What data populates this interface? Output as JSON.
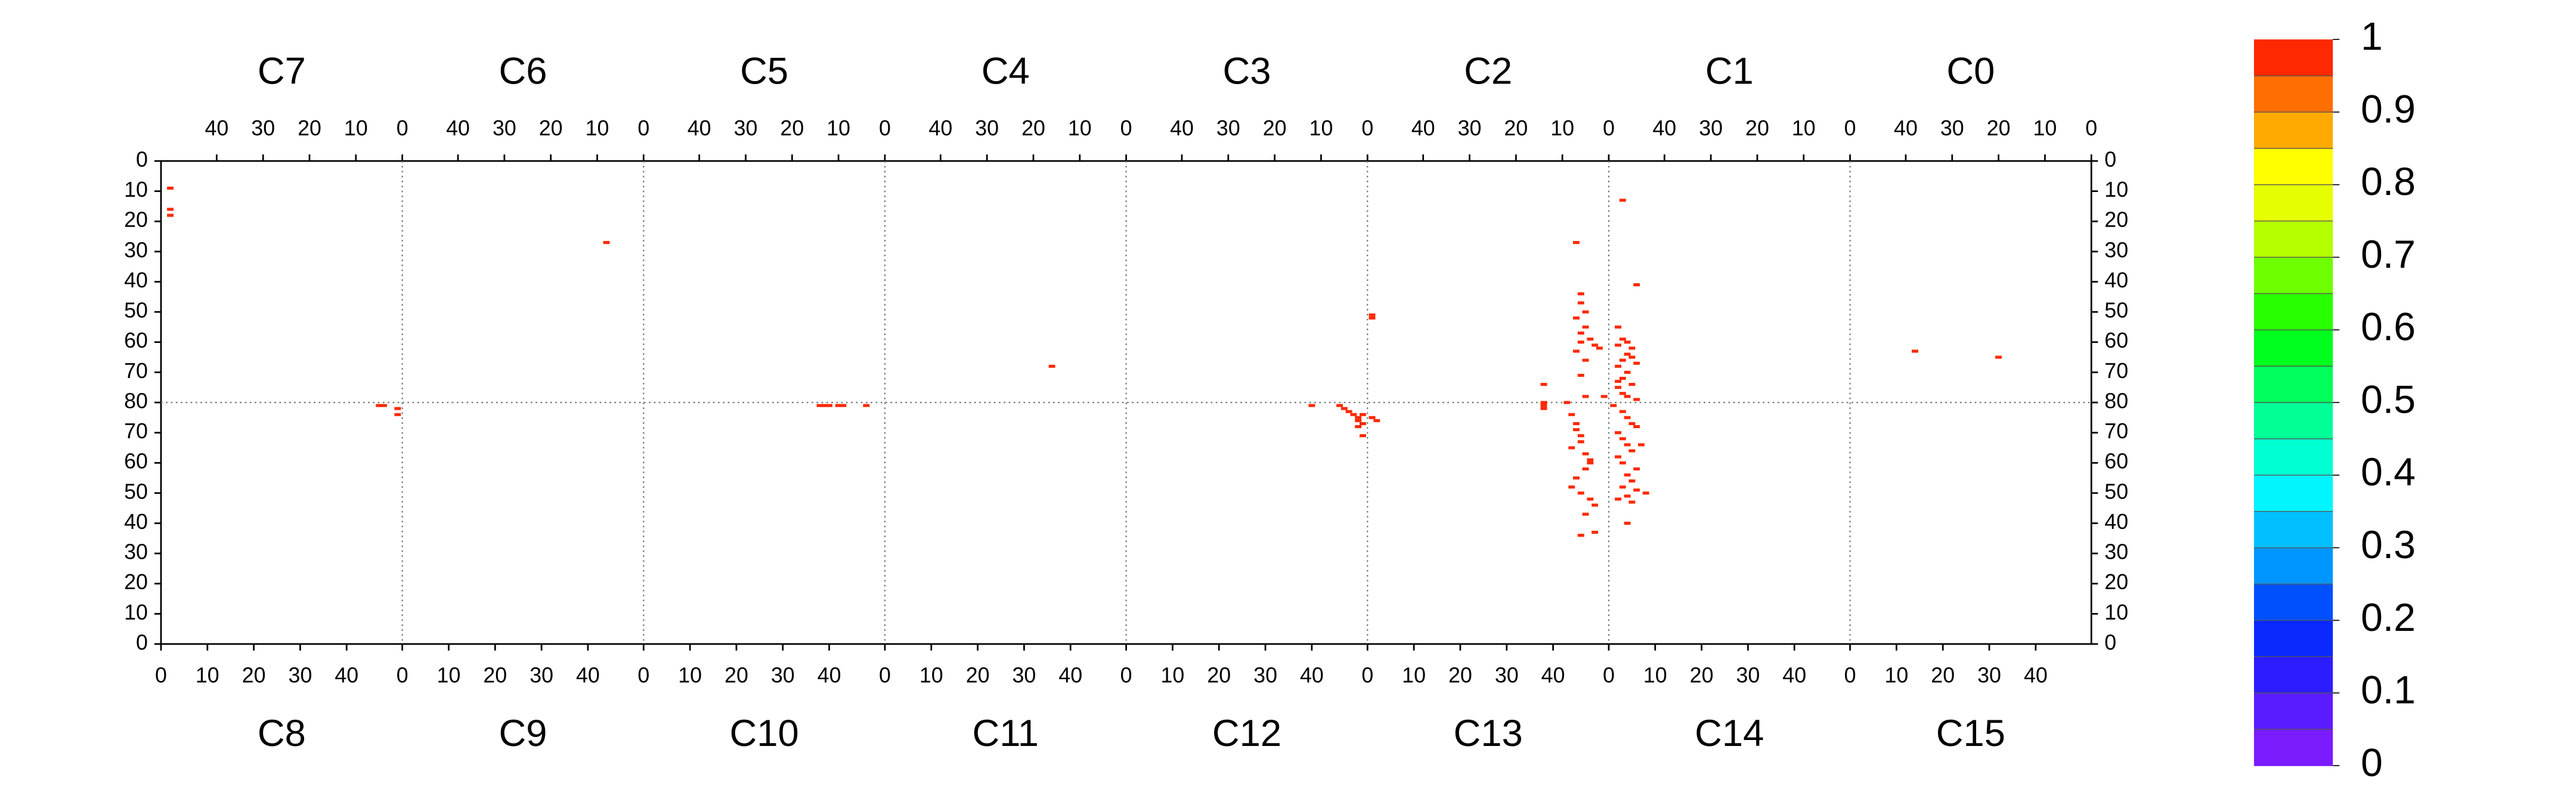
{
  "chart_data": {
    "type": "heatmap",
    "xlim": [
      0,
      52
    ],
    "ylim": [
      0,
      80
    ],
    "grid": true,
    "top": {
      "x_reversed": true,
      "y_inverted": true,
      "xticks": [
        0,
        10,
        20,
        30,
        40
      ],
      "yticks": [
        0,
        10,
        20,
        30,
        40,
        50,
        60,
        70,
        80
      ],
      "series": [
        {
          "name": "C7",
          "x": [
            50,
            50,
            50
          ],
          "y": [
            9,
            16,
            18
          ],
          "values": [
            1,
            1,
            1
          ]
        },
        {
          "name": "C6",
          "x": [
            8
          ],
          "y": [
            27
          ],
          "values": [
            1
          ]
        },
        {
          "name": "C5",
          "x": [],
          "y": [],
          "values": []
        },
        {
          "name": "C4",
          "x": [
            16
          ],
          "y": [
            68
          ],
          "values": [
            1
          ]
        },
        {
          "name": "C3",
          "x": [],
          "y": [],
          "values": []
        },
        {
          "name": "C2",
          "x": [
            51,
            51,
            7,
            6,
            6,
            5,
            7,
            5,
            6,
            4,
            6,
            3,
            7,
            5,
            14,
            14,
            5,
            6,
            2,
            1
          ],
          "y": [
            51,
            52,
            27,
            44,
            47,
            50,
            52,
            55,
            57,
            59,
            60,
            61,
            63,
            66,
            74,
            80,
            78,
            71,
            62,
            78
          ],
          "values": [
            1,
            1,
            1,
            1,
            1,
            1,
            1,
            1,
            1,
            1,
            1,
            1,
            1,
            1,
            1,
            1,
            1,
            1,
            1,
            1
          ]
        },
        {
          "name": "C1",
          "x": [
            49,
            46,
            50,
            49,
            48,
            50,
            47,
            48,
            49,
            46,
            50,
            48,
            49,
            47,
            50,
            49,
            48,
            46,
            47,
            50
          ],
          "y": [
            13,
            41,
            55,
            59,
            60,
            61,
            62,
            64,
            66,
            67,
            68,
            70,
            72,
            74,
            75,
            77,
            78,
            79,
            65,
            73
          ],
          "values": [
            1,
            1,
            1,
            1,
            1,
            1,
            1,
            1,
            1,
            1,
            1,
            1,
            1,
            1,
            1,
            1,
            1,
            1,
            1,
            1
          ]
        },
        {
          "name": "C0",
          "x": [
            38,
            20
          ],
          "y": [
            63,
            65
          ],
          "values": [
            1,
            1
          ]
        }
      ]
    },
    "bottom": {
      "x_reversed": false,
      "y_inverted": false,
      "xticks": [
        0,
        10,
        20,
        30,
        40
      ],
      "yticks": [
        0,
        10,
        20,
        30,
        40,
        50,
        60,
        70
      ],
      "series": [
        {
          "name": "C8",
          "x": [
            47,
            48,
            51,
            51
          ],
          "y": [
            79,
            79,
            78,
            76
          ],
          "values": [
            1,
            1,
            1,
            1
          ]
        },
        {
          "name": "C9",
          "x": [],
          "y": [],
          "values": []
        },
        {
          "name": "C10",
          "x": [
            38,
            39,
            40,
            42,
            43,
            48
          ],
          "y": [
            79,
            79,
            79,
            79,
            79,
            79
          ],
          "values": [
            1,
            1,
            1,
            1,
            1,
            1
          ]
        },
        {
          "name": "C11",
          "x": [],
          "y": [],
          "values": []
        },
        {
          "name": "C12",
          "x": [
            40,
            46,
            47,
            48,
            49,
            50,
            50,
            51,
            50,
            51,
            51
          ],
          "y": [
            79,
            79,
            78,
            77,
            76,
            75,
            74,
            73,
            72,
            76,
            69
          ],
          "values": [
            1,
            1,
            1,
            1,
            1,
            1,
            1,
            1,
            1,
            1,
            1
          ]
        },
        {
          "name": "C13",
          "x": [
            1,
            2,
            38,
            38,
            43,
            44,
            45,
            45,
            46,
            46,
            44,
            47,
            48,
            47,
            45,
            44,
            46,
            48,
            49,
            47,
            46,
            49,
            48
          ],
          "y": [
            75,
            74,
            79,
            78,
            80,
            76,
            73,
            71,
            69,
            67,
            65,
            63,
            61,
            58,
            55,
            52,
            50,
            48,
            46,
            43,
            36,
            37,
            60
          ],
          "values": [
            1,
            1,
            1,
            1,
            1,
            1,
            1,
            1,
            1,
            1,
            1,
            1,
            1,
            1,
            1,
            1,
            1,
            1,
            1,
            1,
            1,
            1,
            1
          ]
        },
        {
          "name": "C14",
          "x": [
            1,
            3,
            4,
            5,
            6,
            2,
            3,
            4,
            5,
            7,
            2,
            3,
            6,
            4,
            5,
            3,
            6,
            4,
            8,
            2,
            5,
            4
          ],
          "y": [
            79,
            77,
            75,
            73,
            72,
            70,
            68,
            66,
            64,
            66,
            62,
            60,
            58,
            56,
            54,
            52,
            51,
            49,
            50,
            48,
            47,
            40
          ],
          "values": [
            1,
            1,
            1,
            1,
            1,
            1,
            1,
            1,
            1,
            1,
            1,
            1,
            1,
            1,
            1,
            1,
            1,
            1,
            1,
            1,
            1,
            1
          ]
        },
        {
          "name": "C15",
          "x": [],
          "y": [],
          "values": []
        }
      ]
    },
    "colorbar": {
      "lim": [
        0,
        1
      ],
      "ticks": [
        0,
        0.1,
        0.2,
        0.3,
        0.4,
        0.5,
        0.6,
        0.7,
        0.8,
        0.9,
        1
      ],
      "colors": [
        "#7a1cff",
        "#5a1cff",
        "#2d1cff",
        "#0a28ff",
        "#0050ff",
        "#0096ff",
        "#00c0ff",
        "#00f5ff",
        "#00ffd2",
        "#00ff96",
        "#00ff5a",
        "#00ff1e",
        "#28ff00",
        "#6eff00",
        "#b4ff00",
        "#e6ff00",
        "#ffff00",
        "#ffaa00",
        "#ff6e00",
        "#ff2800"
      ]
    }
  }
}
